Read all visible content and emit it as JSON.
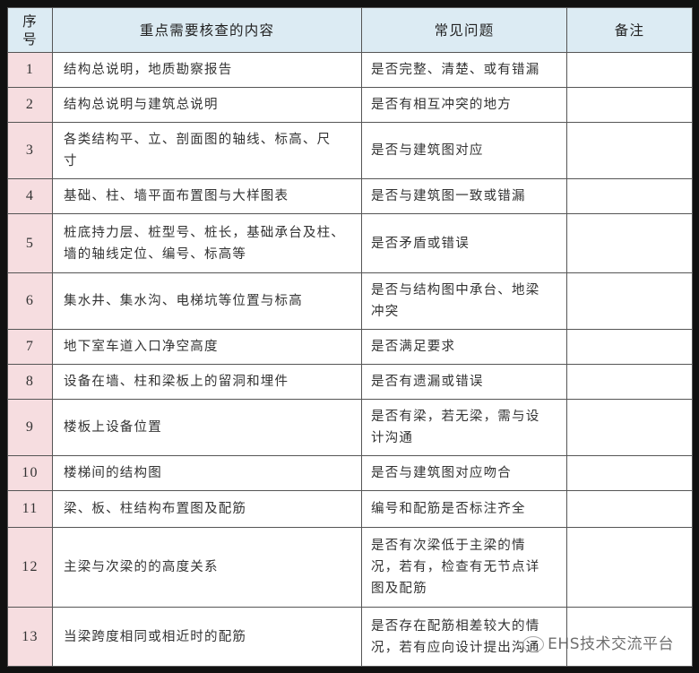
{
  "header": {
    "num": "序\n号",
    "content": "重点需要核查的内容",
    "issue": "常见问题",
    "note": "备注"
  },
  "rows": [
    {
      "num": "1",
      "content": "结构总说明，地质勘察报告",
      "issue": "是否完整、清楚、或有错漏",
      "note": ""
    },
    {
      "num": "2",
      "content": "结构总说明与建筑总说明",
      "issue": "是否有相互冲突的地方",
      "note": ""
    },
    {
      "num": "3",
      "content": "各类结构平、立、剖面图的轴线、标高、尺\n寸",
      "issue": "是否与建筑图对应",
      "note": ""
    },
    {
      "num": "4",
      "content": "基础、柱、墙平面布置图与大样图表",
      "issue": "是否与建筑图一致或错漏",
      "note": ""
    },
    {
      "num": "5",
      "content": "桩底持力层、桩型号、桩长，基础承台及柱、\n墙的轴线定位、编号、标高等",
      "issue": "是否矛盾或错误",
      "note": ""
    },
    {
      "num": "6",
      "content": "集水井、集水沟、电梯坑等位置与标高",
      "issue": "是否与结构图中承台、地梁\n冲突",
      "note": ""
    },
    {
      "num": "7",
      "content": "地下室车道入口净空高度",
      "issue": "是否满足要求",
      "note": ""
    },
    {
      "num": "8",
      "content": "设备在墙、柱和梁板上的留洞和埋件",
      "issue": "是否有遗漏或错误",
      "note": ""
    },
    {
      "num": "9",
      "content": "楼板上设备位置",
      "issue": "是否有梁，若无梁，需与设\n计沟通",
      "note": ""
    },
    {
      "num": "10",
      "content": "楼梯间的结构图",
      "issue": "是否与建筑图对应吻合",
      "note": ""
    },
    {
      "num": "11",
      "content": "梁、板、柱结构布置图及配筋",
      "issue": "编号和配筋是否标注齐全",
      "note": ""
    },
    {
      "num": "12",
      "content": "主梁与次梁的的高度关系",
      "issue": "是否有次梁低于主梁的情\n况，若有，检查有无节点详\n图及配筋",
      "note": ""
    },
    {
      "num": "13",
      "content": "当梁跨度相同或相近时的配筋",
      "issue": "是否存在配筋相差较大的情\n况，若有应向设计提出沟通",
      "note": ""
    }
  ],
  "watermark": "EHS技术交流平台"
}
